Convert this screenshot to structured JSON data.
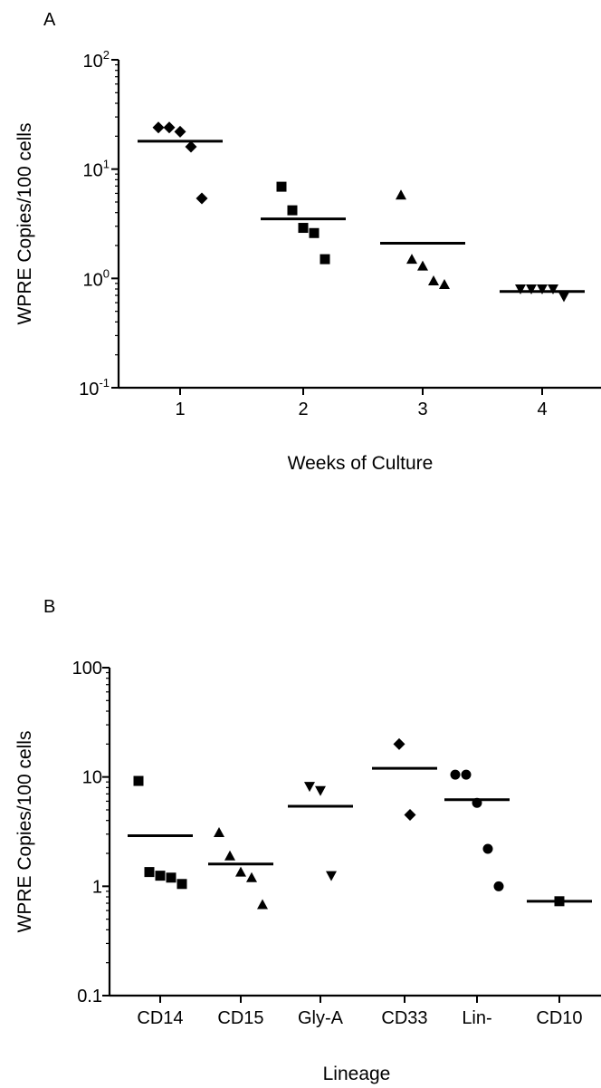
{
  "chart_data": [
    {
      "panel_label": "A",
      "type": "scatter",
      "scale": "log",
      "ylabel": "WPRE  Copies/100 cells",
      "xlabel": "Weeks of Culture",
      "ylim": [
        0.1,
        100
      ],
      "yticks": [
        {
          "value": 100,
          "base": "10",
          "exp": "2"
        },
        {
          "value": 10,
          "base": "10",
          "exp": "1"
        },
        {
          "value": 1,
          "base": "10",
          "exp": "0"
        },
        {
          "value": 0.1,
          "base": "10",
          "exp": "-1"
        }
      ],
      "categories": [
        "1",
        "2",
        "3",
        "4"
      ],
      "marker": [
        "diamond",
        "square",
        "triangle-up",
        "triangle-down"
      ],
      "points": [
        [
          24,
          24,
          22,
          16,
          5.4
        ],
        [
          6.9,
          4.2,
          2.9,
          2.6,
          1.5
        ],
        [
          5.8,
          1.5,
          1.3,
          0.95,
          0.88
        ],
        [
          0.8,
          0.8,
          0.8,
          0.8,
          0.68
        ]
      ],
      "means": [
        18,
        3.5,
        2.1,
        0.76
      ]
    },
    {
      "panel_label": "B",
      "type": "scatter",
      "scale": "log",
      "ylabel": "WPRE  Copies/100 cells",
      "xlabel": "Lineage",
      "ylim": [
        0.1,
        100
      ],
      "yticks": [
        {
          "value": 100,
          "label": "100"
        },
        {
          "value": 10,
          "label": "10"
        },
        {
          "value": 1,
          "label": "1"
        },
        {
          "value": 0.1,
          "label": "0.1"
        }
      ],
      "categories": [
        "CD14",
        "CD15",
        "Gly-A",
        "CD33",
        "Lin-",
        "CD10"
      ],
      "marker": [
        "square",
        "triangle-up",
        "triangle-down",
        "diamond",
        "circle",
        "square"
      ],
      "points": [
        [
          9.2,
          1.35,
          1.25,
          1.2,
          1.05
        ],
        [
          3.1,
          1.9,
          1.35,
          1.2,
          0.68
        ],
        [
          8.2,
          7.5,
          1.25
        ],
        [
          20,
          4.5
        ],
        [
          10.5,
          10.5,
          5.8,
          2.2,
          1.0
        ],
        [
          0.73
        ]
      ],
      "means": [
        2.9,
        1.6,
        5.4,
        12,
        6.2,
        0.73
      ]
    }
  ]
}
